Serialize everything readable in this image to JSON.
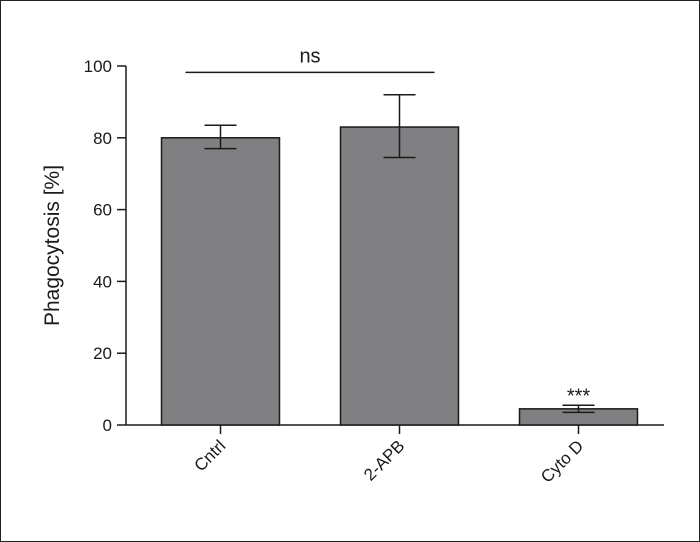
{
  "chart_data": {
    "type": "bar",
    "title": "",
    "xlabel": "",
    "ylabel": "Phagocytosis [%]",
    "ylim": [
      0,
      100
    ],
    "yticks": [
      0,
      20,
      40,
      60,
      80,
      100
    ],
    "categories": [
      "Cntrl",
      "2-APB",
      "Cyto D"
    ],
    "values": [
      80,
      83,
      4.5
    ],
    "error_low": [
      77,
      74.5,
      3.5
    ],
    "error_high": [
      83.5,
      92,
      5.5
    ],
    "bar_color": "#808083",
    "grid": false,
    "legend": "none",
    "annotations": [
      {
        "text": "ns",
        "type": "bracket",
        "from": 0,
        "to": 1,
        "y": 98.5
      },
      {
        "text": "***",
        "type": "above-bar",
        "category": 2,
        "y": 8.5
      }
    ]
  }
}
